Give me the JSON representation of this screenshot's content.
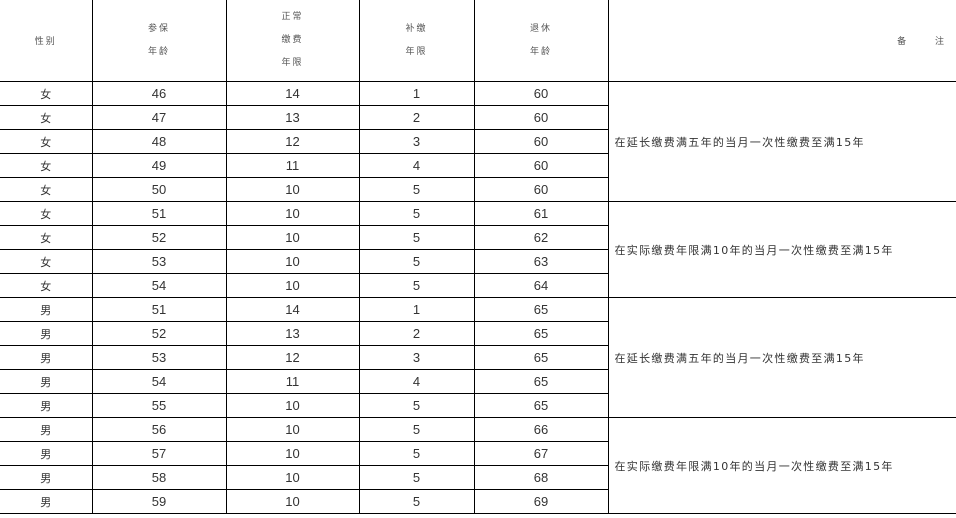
{
  "header": {
    "gender": "性别",
    "join_age": [
      "参保",
      "年龄"
    ],
    "normal_years": [
      "正常",
      "缴费",
      "年限"
    ],
    "supplement_years": [
      "补缴",
      "年限"
    ],
    "retire_age": [
      "退休",
      "年龄"
    ],
    "remarks": "备 注"
  },
  "rows": [
    {
      "gender": "女",
      "join_age": "46",
      "normal_years": "14",
      "supplement_years": "1",
      "retire_age": "60"
    },
    {
      "gender": "女",
      "join_age": "47",
      "normal_years": "13",
      "supplement_years": "2",
      "retire_age": "60"
    },
    {
      "gender": "女",
      "join_age": "48",
      "normal_years": "12",
      "supplement_years": "3",
      "retire_age": "60"
    },
    {
      "gender": "女",
      "join_age": "49",
      "normal_years": "11",
      "supplement_years": "4",
      "retire_age": "60"
    },
    {
      "gender": "女",
      "join_age": "50",
      "normal_years": "10",
      "supplement_years": "5",
      "retire_age": "60"
    },
    {
      "gender": "女",
      "join_age": "51",
      "normal_years": "10",
      "supplement_years": "5",
      "retire_age": "61"
    },
    {
      "gender": "女",
      "join_age": "52",
      "normal_years": "10",
      "supplement_years": "5",
      "retire_age": "62"
    },
    {
      "gender": "女",
      "join_age": "53",
      "normal_years": "10",
      "supplement_years": "5",
      "retire_age": "63"
    },
    {
      "gender": "女",
      "join_age": "54",
      "normal_years": "10",
      "supplement_years": "5",
      "retire_age": "64"
    },
    {
      "gender": "男",
      "join_age": "51",
      "normal_years": "14",
      "supplement_years": "1",
      "retire_age": "65"
    },
    {
      "gender": "男",
      "join_age": "52",
      "normal_years": "13",
      "supplement_years": "2",
      "retire_age": "65"
    },
    {
      "gender": "男",
      "join_age": "53",
      "normal_years": "12",
      "supplement_years": "3",
      "retire_age": "65"
    },
    {
      "gender": "男",
      "join_age": "54",
      "normal_years": "11",
      "supplement_years": "4",
      "retire_age": "65"
    },
    {
      "gender": "男",
      "join_age": "55",
      "normal_years": "10",
      "supplement_years": "5",
      "retire_age": "65"
    },
    {
      "gender": "男",
      "join_age": "56",
      "normal_years": "10",
      "supplement_years": "5",
      "retire_age": "66"
    },
    {
      "gender": "男",
      "join_age": "57",
      "normal_years": "10",
      "supplement_years": "5",
      "retire_age": "67"
    },
    {
      "gender": "男",
      "join_age": "58",
      "normal_years": "10",
      "supplement_years": "5",
      "retire_age": "68"
    },
    {
      "gender": "男",
      "join_age": "59",
      "normal_years": "10",
      "supplement_years": "5",
      "retire_age": "69"
    }
  ],
  "remarks": [
    "在延长缴费满五年的当月一次性缴费至满15年",
    "在实际缴费年限满10年的当月一次性缴费至满15年",
    "在延长缴费满五年的当月一次性缴费至满15年",
    "在实际缴费年限满10年的当月一次性缴费至满15年"
  ]
}
